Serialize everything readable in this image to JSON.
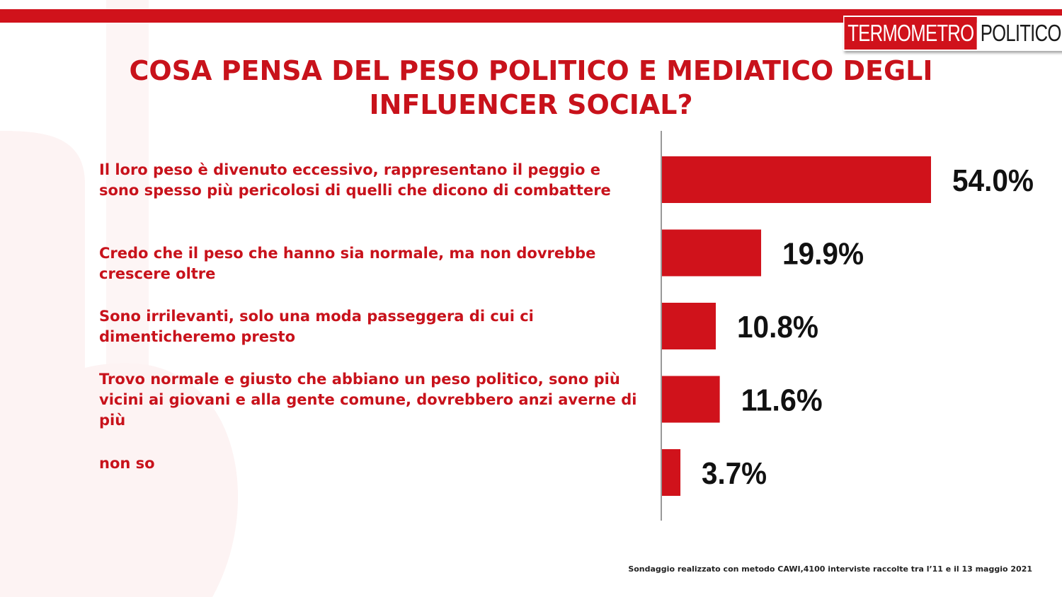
{
  "logo": {
    "part1": "TERMOMETRO",
    "part2": "POLITICO"
  },
  "title_lines": [
    "COSA PENSA DEL PESO POLITICO E MEDIATICO DEGLI",
    "INFLUENCER SOCIAL?"
  ],
  "footnote": "Sondaggio realizzato con metodo CAWI,4100 interviste raccolte tra l’11  e il 13 maggio 2021",
  "colors": {
    "accent": "#d0121b",
    "text": "#c8121b"
  },
  "chart_data": {
    "type": "bar",
    "orientation": "horizontal",
    "categories": [
      "Il loro peso è divenuto eccessivo, rappresentano il peggio e sono spesso più pericolosi di quelli che dicono di combattere",
      "Credo che il peso che hanno sia normale, ma non dovrebbe crescere oltre",
      "Sono irrilevanti, solo una moda passeggera di cui ci dimenticheremo presto",
      "Trovo normale e giusto che abbiano un peso politico, sono più vicini ai giovani e alla gente comune, dovrebbero anzi averne di più",
      "non so"
    ],
    "values": [
      54.0,
      19.9,
      10.8,
      11.6,
      3.7
    ],
    "value_labels": [
      "54.0%",
      "19.9%",
      "10.8%",
      "11.6%",
      "3.7%"
    ],
    "unit": "%",
    "xlim": [
      0,
      54.0
    ],
    "grid": false,
    "color": "#d0121b"
  }
}
